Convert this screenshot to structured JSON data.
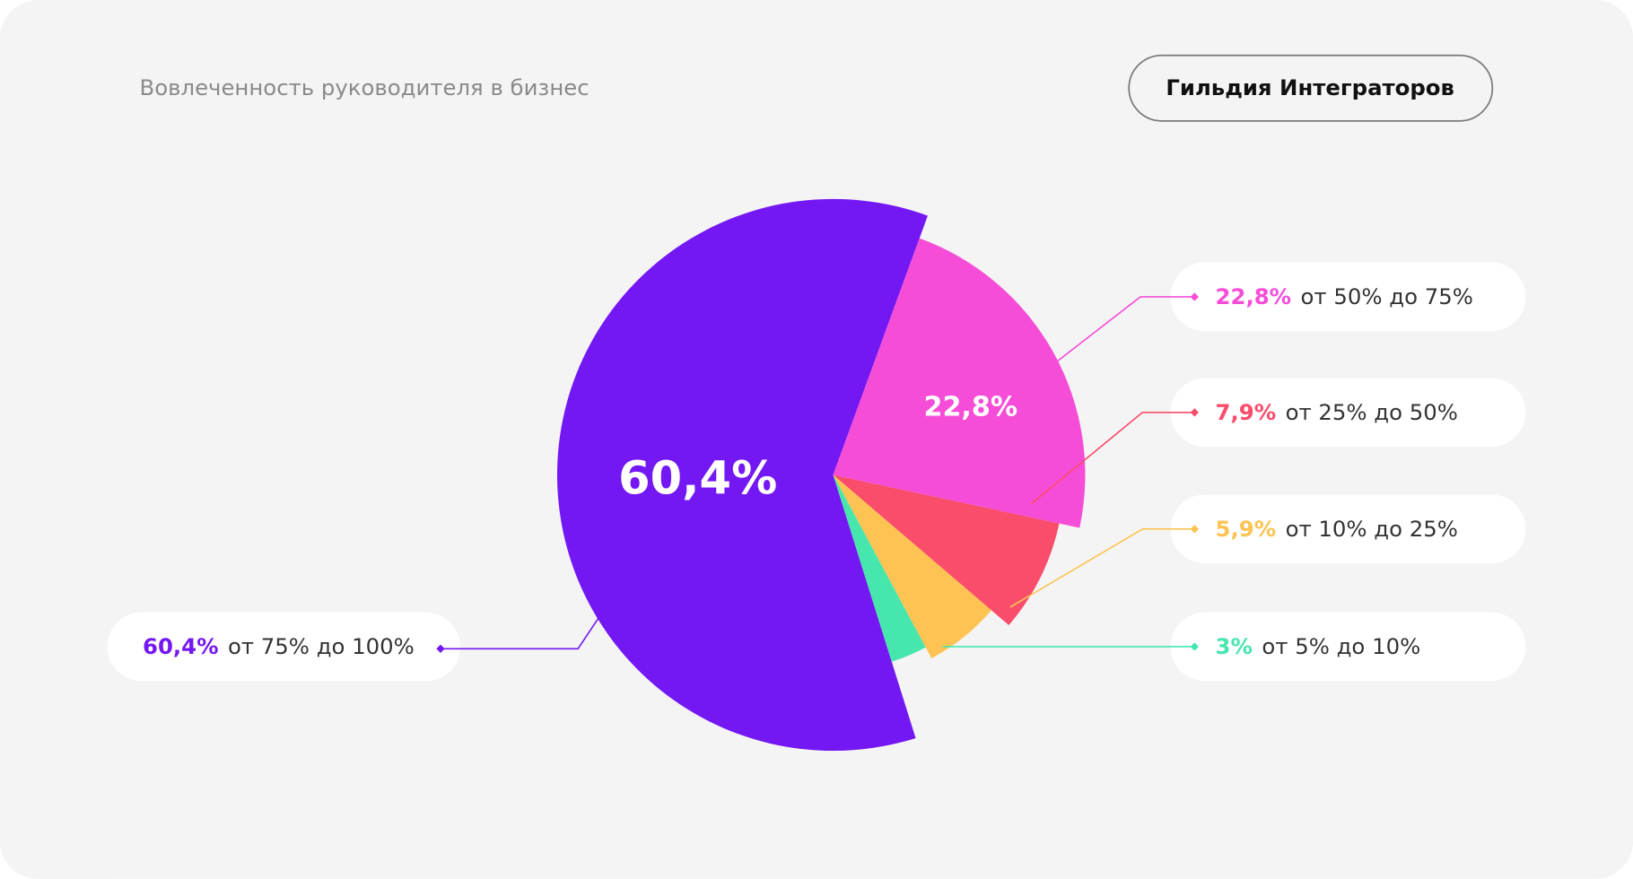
{
  "chart_data": {
    "type": "pie",
    "title": "Вовлеченность руководителя в бизнес",
    "badge": "Гильдия Интеграторов",
    "series": [
      {
        "name": "от 75% до 100%",
        "color": "#7418f3",
        "values": [
          60.4
        ],
        "value_labels": [
          "60,4%"
        ]
      },
      {
        "name": "от 50% до 75%",
        "color": "#f64dd8",
        "values": [
          22.8
        ],
        "value_labels": [
          "22,8%"
        ]
      },
      {
        "name": "от 25% до 50%",
        "color": "#f94d6b",
        "values": [
          7.9
        ],
        "value_labels": [
          "7,9%"
        ]
      },
      {
        "name": "от 10% до 25%",
        "color": "#fec352",
        "values": [
          5.9
        ],
        "value_labels": [
          "5,9%"
        ]
      },
      {
        "name": "от 5% до 10%",
        "color": "#47e6ad",
        "values": [
          3
        ],
        "value_labels": [
          "3%"
        ]
      }
    ]
  }
}
